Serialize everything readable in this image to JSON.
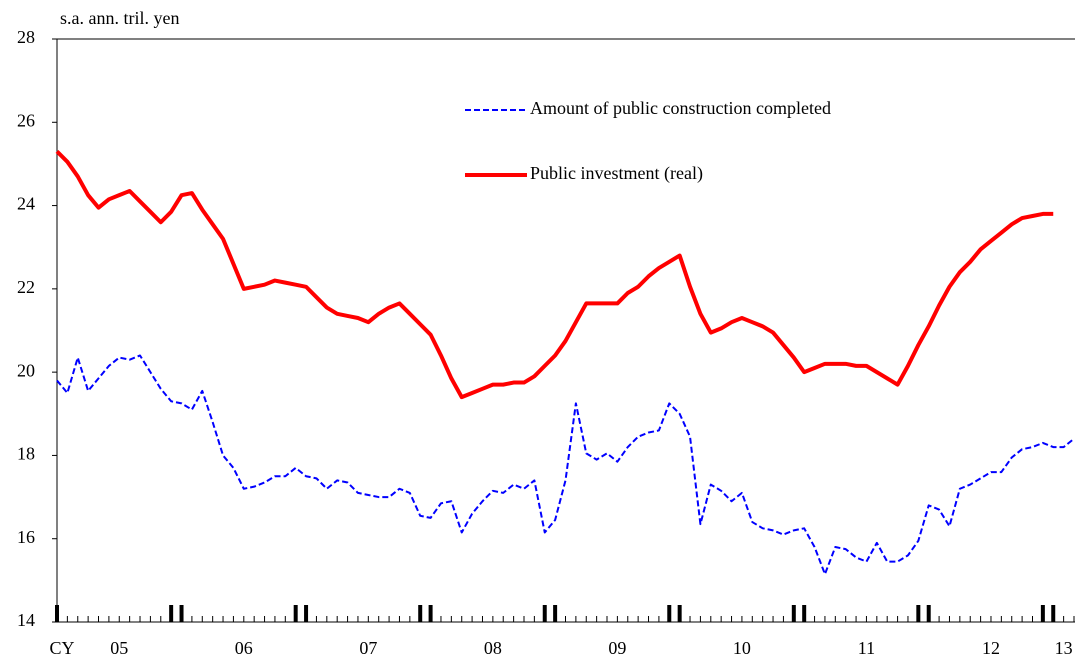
{
  "chart_data": {
    "type": "line",
    "y_axis_label": "s.a. ann. tril. yen",
    "x_prefix": "CY",
    "categories": [
      null,
      null,
      null,
      null,
      null,
      null,
      "05",
      null,
      null,
      null,
      null,
      null,
      null,
      null,
      null,
      null,
      null,
      null,
      "06",
      null,
      null,
      null,
      null,
      null,
      null,
      null,
      null,
      null,
      null,
      null,
      "07",
      null,
      null,
      null,
      null,
      null,
      null,
      null,
      null,
      null,
      null,
      null,
      "08",
      null,
      null,
      null,
      null,
      null,
      null,
      null,
      null,
      null,
      null,
      null,
      "09",
      null,
      null,
      null,
      null,
      null,
      null,
      null,
      null,
      null,
      null,
      null,
      "10",
      null,
      null,
      null,
      null,
      null,
      null,
      null,
      null,
      null,
      null,
      null,
      "11",
      null,
      null,
      null,
      null,
      null,
      null,
      null,
      null,
      null,
      null,
      null,
      "12",
      null,
      null,
      null,
      null,
      null,
      null,
      "13",
      null
    ],
    "ylim": [
      14,
      28
    ],
    "yticks": [
      14,
      16,
      18,
      20,
      22,
      24,
      26,
      28
    ],
    "series": [
      {
        "name": "Amount of public construction completed",
        "color": "#0000ff",
        "dash": true,
        "values": [
          19.8,
          19.5,
          20.35,
          19.55,
          19.85,
          20.15,
          20.35,
          20.3,
          20.4,
          20.0,
          19.6,
          19.3,
          19.25,
          19.1,
          19.55,
          18.8,
          18.0,
          17.7,
          17.2,
          17.25,
          17.35,
          17.5,
          17.5,
          17.7,
          17.5,
          17.45,
          17.2,
          17.4,
          17.35,
          17.1,
          17.05,
          17.0,
          17.0,
          17.2,
          17.1,
          16.55,
          16.5,
          16.85,
          16.9,
          16.15,
          16.6,
          16.9,
          17.15,
          17.1,
          17.3,
          17.2,
          17.4,
          16.15,
          16.45,
          17.4,
          19.25,
          18.05,
          17.9,
          18.05,
          17.85,
          18.2,
          18.45,
          18.55,
          18.6,
          19.25,
          19.0,
          18.45,
          16.35,
          17.3,
          17.15,
          16.9,
          17.1,
          16.4,
          16.25,
          16.2,
          16.1,
          16.2,
          16.25,
          15.8,
          15.15,
          15.8,
          15.75,
          15.55,
          15.45,
          15.9,
          15.45,
          15.45,
          15.6,
          15.95,
          16.8,
          16.7,
          16.3,
          17.2,
          17.3,
          17.45,
          17.6,
          17.6,
          17.95,
          18.15,
          18.2,
          18.3,
          18.2,
          18.2,
          18.4
        ]
      },
      {
        "name": "Public investment (real)",
        "color": "#ff0000",
        "dash": false,
        "values": [
          25.3,
          25.05,
          24.7,
          24.25,
          23.95,
          24.15,
          24.25,
          24.35,
          24.1,
          23.85,
          23.6,
          23.85,
          24.25,
          24.3,
          23.9,
          23.55,
          23.2,
          22.6,
          22.0,
          22.05,
          22.1,
          22.2,
          22.15,
          22.1,
          22.05,
          21.8,
          21.55,
          21.4,
          21.35,
          21.3,
          21.2,
          21.4,
          21.55,
          21.65,
          21.4,
          21.15,
          20.9,
          20.4,
          19.85,
          19.4,
          19.5,
          19.6,
          19.7,
          19.7,
          19.75,
          19.75,
          19.9,
          20.15,
          20.4,
          20.75,
          21.2,
          21.65,
          21.65,
          21.65,
          21.65,
          21.9,
          22.05,
          22.3,
          22.5,
          22.65,
          22.8,
          22.05,
          21.4,
          20.95,
          21.05,
          21.2,
          21.3,
          21.2,
          21.1,
          20.95,
          20.65,
          20.35,
          20.0,
          20.1,
          20.2,
          20.2,
          20.2,
          20.15,
          20.15,
          20.0,
          19.85,
          19.7,
          20.15,
          20.65,
          21.1,
          21.6,
          22.05,
          22.4,
          22.65,
          22.95,
          23.15,
          23.35,
          23.55,
          23.7,
          23.75,
          23.8,
          23.8,
          null,
          null
        ]
      }
    ]
  }
}
